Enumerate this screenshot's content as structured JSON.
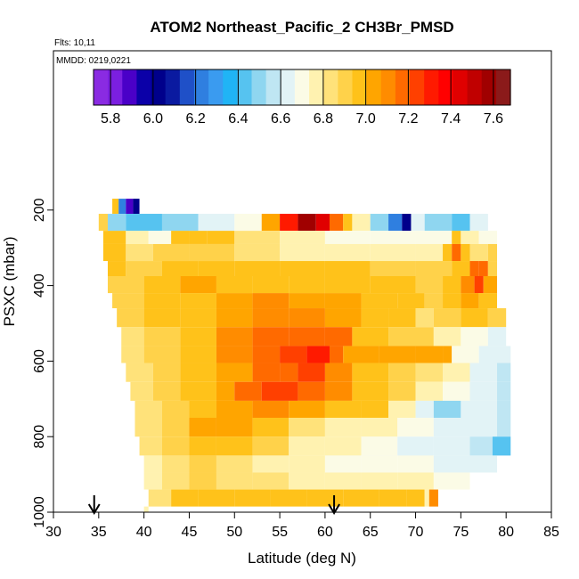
{
  "chart_data": {
    "type": "heatmap",
    "title": "ATOM2 Northeast_Pacific_2 CH3Br_PMSD",
    "flights_label": "Flts: 10,11",
    "dates_label": "MMDD: 0219,0221",
    "xlabel": "Latitude (deg N)",
    "ylabel": "PSXC (mbar)",
    "xlim": [
      30,
      85
    ],
    "ylim": [
      1000,
      0
    ],
    "x_ticks": [
      30,
      35,
      40,
      45,
      50,
      55,
      60,
      65,
      70,
      75,
      80,
      85
    ],
    "y_ticks": [
      200,
      400,
      600,
      800,
      1000
    ],
    "colorbar": {
      "range": [
        5.72,
        7.68
      ],
      "ticks": [
        5.8,
        6.0,
        6.2,
        6.4,
        6.6,
        6.8,
        7.0,
        7.2,
        7.4,
        7.6
      ],
      "colors": [
        "#8a2be2",
        "#7b1fe0",
        "#4a00c8",
        "#0b00a8",
        "#00008b",
        "#0a1aa0",
        "#1f50c8",
        "#2f7fe0",
        "#3a9bf0",
        "#20b4f5",
        "#56c3f0",
        "#8fd6f0",
        "#bfe6f3",
        "#e2f3f6",
        "#fbfbe6",
        "#fff2b0",
        "#ffe27a",
        "#ffd24a",
        "#ffc21a",
        "#ffa500",
        "#ff8c00",
        "#ff6a00",
        "#ff4000",
        "#ff1a00",
        "#ff0000",
        "#e00000",
        "#c00000",
        "#a00000",
        "#8b1a1a"
      ]
    },
    "flight_direction_markers": [
      34.5,
      61.0
    ],
    "profiles": [
      {
        "p_top": 170,
        "p_bot": 210,
        "lat_start": 36.5,
        "lat_end": 39.5,
        "segments": [
          [
            36.5,
            6.95
          ],
          [
            37.2,
            6.2
          ],
          [
            38.0,
            5.9
          ],
          [
            38.8,
            6.0
          ]
        ]
      },
      {
        "p_top": 210,
        "p_bot": 255,
        "lat_start": 35.0,
        "lat_end": 78.0,
        "segments": [
          [
            35.0,
            6.9
          ],
          [
            36.0,
            6.5
          ],
          [
            38.0,
            6.45
          ],
          [
            42.0,
            6.5
          ],
          [
            46.0,
            6.6
          ],
          [
            50.0,
            6.7
          ],
          [
            53.0,
            7.05
          ],
          [
            55.0,
            7.3
          ],
          [
            57.0,
            7.55
          ],
          [
            59.0,
            7.45
          ],
          [
            60.5,
            7.2
          ],
          [
            62.0,
            7.0
          ],
          [
            63.0,
            6.8
          ],
          [
            65.0,
            6.5
          ],
          [
            67.0,
            6.2
          ],
          [
            68.5,
            6.0
          ],
          [
            69.5,
            6.6
          ],
          [
            71.0,
            6.5
          ],
          [
            74.0,
            6.4
          ],
          [
            76.0,
            6.6
          ]
        ]
      },
      {
        "p_top": 255,
        "p_bot": 290,
        "lat_start": 35.5,
        "lat_end": 79.0,
        "segments": [
          [
            35.5,
            6.95
          ],
          [
            38.0,
            6.8
          ],
          [
            40.5,
            6.7
          ],
          [
            43.0,
            6.95
          ],
          [
            45.0,
            7.0
          ],
          [
            47.0,
            6.95
          ],
          [
            50.0,
            6.85
          ],
          [
            55.0,
            6.75
          ],
          [
            60.0,
            6.72
          ],
          [
            65.0,
            6.7
          ],
          [
            70.0,
            6.68
          ],
          [
            74.0,
            6.95
          ],
          [
            75.0,
            6.8
          ],
          [
            77.0,
            6.7
          ]
        ]
      },
      {
        "p_top": 290,
        "p_bot": 335,
        "lat_start": 35.5,
        "lat_end": 79.0,
        "segments": [
          [
            35.5,
            6.95
          ],
          [
            38.0,
            6.85
          ],
          [
            41.0,
            6.9
          ],
          [
            45.0,
            6.88
          ],
          [
            50.0,
            6.85
          ],
          [
            55.0,
            6.8
          ],
          [
            60.0,
            6.78
          ],
          [
            65.0,
            6.75
          ],
          [
            70.0,
            6.8
          ],
          [
            73.0,
            6.95
          ],
          [
            74.0,
            7.15
          ],
          [
            75.0,
            6.95
          ],
          [
            76.0,
            6.85
          ],
          [
            78.0,
            6.9
          ]
        ]
      },
      {
        "p_top": 335,
        "p_bot": 375,
        "lat_start": 36.0,
        "lat_end": 79.0,
        "segments": [
          [
            36.0,
            6.95
          ],
          [
            38.0,
            6.88
          ],
          [
            42.0,
            6.95
          ],
          [
            46.0,
            6.98
          ],
          [
            50.0,
            7.0
          ],
          [
            55.0,
            6.95
          ],
          [
            60.0,
            6.95
          ],
          [
            65.0,
            6.92
          ],
          [
            70.0,
            6.9
          ],
          [
            74.0,
            7.0
          ],
          [
            76.0,
            7.15
          ],
          [
            77.0,
            7.2
          ],
          [
            78.0,
            6.9
          ]
        ]
      },
      {
        "p_top": 375,
        "p_bot": 420,
        "lat_start": 36.0,
        "lat_end": 79.0,
        "segments": [
          [
            36.0,
            6.92
          ],
          [
            40.0,
            6.95
          ],
          [
            44.0,
            7.02
          ],
          [
            48.0,
            7.0
          ],
          [
            52.0,
            7.0
          ],
          [
            56.0,
            6.98
          ],
          [
            60.0,
            6.95
          ],
          [
            65.0,
            6.95
          ],
          [
            70.0,
            6.92
          ],
          [
            73.0,
            6.98
          ],
          [
            75.0,
            7.1
          ],
          [
            76.5,
            7.25
          ],
          [
            77.5,
            7.05
          ]
        ]
      },
      {
        "p_top": 420,
        "p_bot": 460,
        "lat_start": 36.5,
        "lat_end": 79.0,
        "segments": [
          [
            36.5,
            6.92
          ],
          [
            40.0,
            6.95
          ],
          [
            44.0,
            7.0
          ],
          [
            48.0,
            7.05
          ],
          [
            52.0,
            7.08
          ],
          [
            56.0,
            7.05
          ],
          [
            60.0,
            7.02
          ],
          [
            64.0,
            6.98
          ],
          [
            68.0,
            6.95
          ],
          [
            71.0,
            6.9
          ],
          [
            73.0,
            6.95
          ],
          [
            75.0,
            7.05
          ],
          [
            77.0,
            7.0
          ]
        ]
      },
      {
        "p_top": 460,
        "p_bot": 510,
        "lat_start": 37.0,
        "lat_end": 80.0,
        "segments": [
          [
            37.0,
            6.9
          ],
          [
            40.0,
            6.95
          ],
          [
            44.0,
            7.0
          ],
          [
            48.0,
            7.05
          ],
          [
            52.0,
            7.1
          ],
          [
            56.0,
            7.1
          ],
          [
            60.0,
            7.05
          ],
          [
            64.0,
            7.0
          ],
          [
            67.0,
            6.95
          ],
          [
            70.0,
            6.85
          ],
          [
            72.0,
            6.88
          ],
          [
            75.0,
            6.95
          ],
          [
            78.0,
            6.9
          ]
        ]
      },
      {
        "p_top": 510,
        "p_bot": 560,
        "lat_start": 37.5,
        "lat_end": 80.0,
        "segments": [
          [
            37.5,
            6.85
          ],
          [
            40.0,
            6.9
          ],
          [
            44.0,
            6.98
          ],
          [
            48.0,
            7.1
          ],
          [
            52.0,
            7.15
          ],
          [
            56.0,
            7.2
          ],
          [
            60.0,
            7.2
          ],
          [
            63.0,
            6.95
          ],
          [
            67.0,
            6.9
          ],
          [
            72.0,
            6.75
          ],
          [
            75.0,
            6.7
          ],
          [
            78.0,
            6.65
          ]
        ]
      },
      {
        "p_top": 560,
        "p_bot": 605,
        "lat_start": 37.5,
        "lat_end": 80.5,
        "segments": [
          [
            37.5,
            6.85
          ],
          [
            40.0,
            6.9
          ],
          [
            44.0,
            7.0
          ],
          [
            48.0,
            7.1
          ],
          [
            52.0,
            7.15
          ],
          [
            55.0,
            7.25
          ],
          [
            58.0,
            7.3
          ],
          [
            60.5,
            7.15
          ],
          [
            62.0,
            7.05
          ],
          [
            66.0,
            7.05
          ],
          [
            70.0,
            7.05
          ],
          [
            73.0,
            7.05
          ],
          [
            74.0,
            6.7
          ],
          [
            77.0,
            6.6
          ],
          [
            79.0,
            6.6
          ]
        ]
      },
      {
        "p_top": 605,
        "p_bot": 655,
        "lat_start": 38.0,
        "lat_end": 80.5,
        "segments": [
          [
            38.0,
            6.85
          ],
          [
            41.0,
            6.88
          ],
          [
            44.0,
            6.95
          ],
          [
            48.0,
            7.05
          ],
          [
            52.0,
            7.15
          ],
          [
            55.0,
            7.2
          ],
          [
            57.0,
            7.25
          ],
          [
            60.0,
            7.1
          ],
          [
            63.0,
            7.0
          ],
          [
            67.0,
            6.9
          ],
          [
            70.0,
            6.85
          ],
          [
            73.0,
            6.75
          ],
          [
            76.0,
            6.6
          ],
          [
            79.0,
            6.55
          ]
        ]
      },
      {
        "p_top": 655,
        "p_bot": 705,
        "lat_start": 38.5,
        "lat_end": 80.5,
        "segments": [
          [
            38.5,
            6.85
          ],
          [
            41.0,
            6.88
          ],
          [
            44.0,
            6.95
          ],
          [
            48.0,
            7.05
          ],
          [
            50.0,
            7.2
          ],
          [
            53.0,
            7.25
          ],
          [
            57.0,
            7.2
          ],
          [
            60.0,
            7.1
          ],
          [
            63.0,
            7.0
          ],
          [
            67.0,
            6.9
          ],
          [
            70.0,
            6.8
          ],
          [
            73.0,
            6.7
          ],
          [
            76.0,
            6.6
          ],
          [
            79.0,
            6.55
          ]
        ]
      },
      {
        "p_top": 705,
        "p_bot": 750,
        "lat_start": 39.0,
        "lat_end": 80.5,
        "segments": [
          [
            39.0,
            6.85
          ],
          [
            42.0,
            6.9
          ],
          [
            45.0,
            7.0
          ],
          [
            48.0,
            7.05
          ],
          [
            52.0,
            7.1
          ],
          [
            56.0,
            7.05
          ],
          [
            60.0,
            7.0
          ],
          [
            64.0,
            6.95
          ],
          [
            67.0,
            6.8
          ],
          [
            70.0,
            6.6
          ],
          [
            72.0,
            6.5
          ],
          [
            75.0,
            6.6
          ],
          [
            79.0,
            6.55
          ]
        ]
      },
      {
        "p_top": 750,
        "p_bot": 800,
        "lat_start": 39.0,
        "lat_end": 80.5,
        "segments": [
          [
            39.0,
            6.85
          ],
          [
            42.0,
            6.9
          ],
          [
            45.0,
            7.02
          ],
          [
            48.0,
            7.05
          ],
          [
            52.0,
            6.95
          ],
          [
            56.0,
            6.85
          ],
          [
            60.0,
            6.8
          ],
          [
            64.0,
            6.75
          ],
          [
            68.0,
            6.7
          ],
          [
            72.0,
            6.65
          ],
          [
            76.0,
            6.6
          ],
          [
            79.0,
            6.55
          ]
        ]
      },
      {
        "p_top": 800,
        "p_bot": 850,
        "lat_start": 39.5,
        "lat_end": 80.5,
        "segments": [
          [
            39.5,
            6.85
          ],
          [
            42.0,
            6.9
          ],
          [
            45.0,
            7.0
          ],
          [
            48.0,
            6.95
          ],
          [
            52.0,
            6.88
          ],
          [
            56.0,
            6.8
          ],
          [
            60.0,
            6.75
          ],
          [
            64.0,
            6.7
          ],
          [
            68.0,
            6.65
          ],
          [
            72.0,
            6.6
          ],
          [
            76.0,
            6.55
          ],
          [
            78.5,
            6.45
          ]
        ]
      },
      {
        "p_top": 850,
        "p_bot": 895,
        "lat_start": 40.0,
        "lat_end": 79.0,
        "segments": [
          [
            40.0,
            6.8
          ],
          [
            42.0,
            6.85
          ],
          [
            45.0,
            6.9
          ],
          [
            48.0,
            6.85
          ],
          [
            52.0,
            6.8
          ],
          [
            56.0,
            6.75
          ],
          [
            60.0,
            6.72
          ],
          [
            64.0,
            6.7
          ],
          [
            68.0,
            6.68
          ],
          [
            72.0,
            6.65
          ],
          [
            76.0,
            6.6
          ]
        ]
      },
      {
        "p_top": 895,
        "p_bot": 940,
        "lat_start": 40.0,
        "lat_end": 76.0,
        "segments": [
          [
            40.0,
            6.8
          ],
          [
            42.0,
            6.85
          ],
          [
            45.0,
            6.88
          ],
          [
            48.0,
            6.85
          ],
          [
            52.0,
            6.82
          ],
          [
            56.0,
            6.8
          ],
          [
            60.0,
            6.78
          ],
          [
            64.0,
            6.76
          ],
          [
            68.0,
            6.75
          ],
          [
            72.0,
            6.72
          ]
        ]
      },
      {
        "p_top": 940,
        "p_bot": 985,
        "lat_start": 40.5,
        "lat_end": 72.5,
        "segments": [
          [
            40.5,
            6.85
          ],
          [
            43.0,
            6.95
          ],
          [
            46.0,
            7.0
          ],
          [
            50.0,
            7.0
          ],
          [
            54.0,
            6.98
          ],
          [
            58.0,
            6.95
          ],
          [
            62.0,
            6.95
          ],
          [
            66.0,
            6.95
          ],
          [
            69.0,
            6.95
          ],
          [
            71.0,
            6.75
          ],
          [
            71.5,
            7.1
          ]
        ]
      },
      {
        "p_top": 985,
        "p_bot": 1000,
        "lat_start": 40.0,
        "lat_end": 40.5,
        "segments": [
          [
            40.0,
            6.75
          ]
        ]
      }
    ]
  }
}
